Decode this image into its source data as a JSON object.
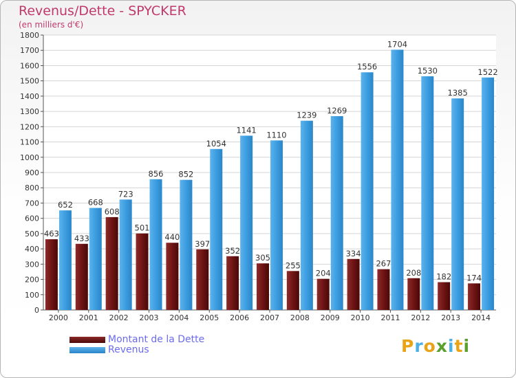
{
  "header": {
    "title": "Revenus/Dette - SPYCKER",
    "subtitle": "(en milliers d'€)"
  },
  "brand": {
    "letters": [
      "P",
      "r",
      "o",
      "x",
      "i",
      "t",
      "i"
    ],
    "colors": [
      "#e8a317",
      "#4ab0e8",
      "#e8a317",
      "#5aa02c",
      "#4ab0e8",
      "#e8a317",
      "#5aa02c"
    ]
  },
  "chart_data": {
    "type": "bar",
    "title": "Revenus/Dette - SPYCKER",
    "ylabel": "(en milliers d'€)",
    "categories": [
      "2000",
      "2001",
      "2002",
      "2003",
      "2004",
      "2005",
      "2006",
      "2007",
      "2008",
      "2009",
      "2010",
      "2011",
      "2012",
      "2013",
      "2014"
    ],
    "series": [
      {
        "name": "Montant de la Dette",
        "values": [
          463,
          433,
          608,
          501,
          440,
          397,
          352,
          305,
          255,
          204,
          334,
          267,
          208,
          182,
          174
        ],
        "labels": [
          "463",
          "433",
          "608",
          "501",
          "440",
          "397",
          "352",
          "305",
          "255",
          "204",
          "334",
          "267",
          "208",
          "182",
          "174"
        ],
        "color": "#7a1a1a"
      },
      {
        "name": "Revenus",
        "values": [
          652,
          668,
          723,
          856,
          852,
          1054,
          1141,
          1110,
          1239,
          1269,
          1556,
          1704,
          1530,
          1385,
          1522
        ],
        "labels": [
          "652",
          "668",
          "723",
          "856",
          "852",
          "1054",
          "1141",
          "1110",
          "1239",
          "1269",
          "1556",
          "1704",
          "1530",
          "1385",
          "1522"
        ],
        "color": "#3c9de0"
      }
    ],
    "ylim": [
      0,
      1800
    ],
    "yticks": [
      "0",
      "100",
      "200",
      "300",
      "400",
      "500",
      "600",
      "700",
      "800",
      "900",
      "1000",
      "1100",
      "1200",
      "1300",
      "1400",
      "1500",
      "1600",
      "1700",
      "1800"
    ],
    "grid": true,
    "legend": "bottom-left"
  }
}
